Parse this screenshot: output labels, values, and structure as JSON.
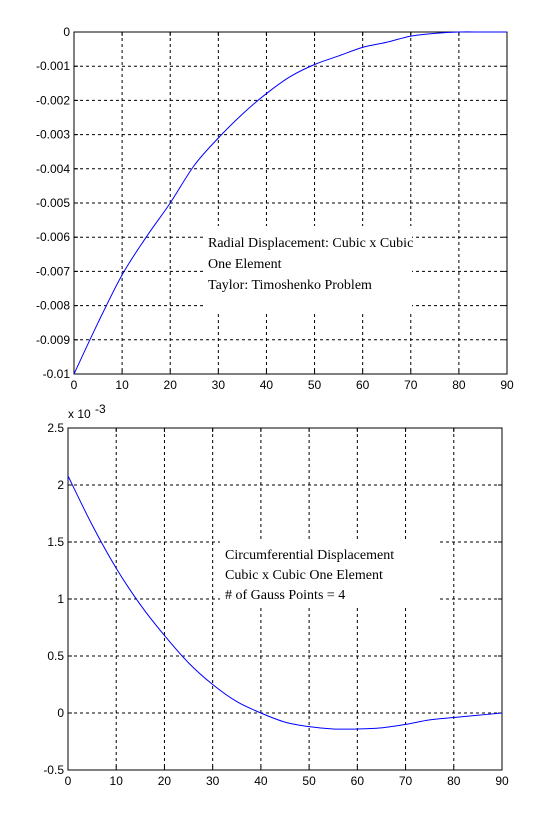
{
  "chart_data": [
    {
      "type": "line",
      "title": "",
      "xlabel": "",
      "ylabel": "",
      "xlim": [
        0,
        90
      ],
      "ylim": [
        -0.01,
        0
      ],
      "grid": true,
      "xticks": [
        "0",
        "10",
        "20",
        "30",
        "40",
        "50",
        "60",
        "70",
        "80",
        "90"
      ],
      "yticks": [
        "0",
        "-0.001",
        "-0.002",
        "-0.003",
        "-0.004",
        "-0.005",
        "-0.006",
        "-0.007",
        "-0.008",
        "-0.009",
        "-0.01"
      ],
      "annotation": [
        "Radial Displacement: Cubic x Cubic",
        "One Element",
        "Taylor: Timoshenko Problem"
      ],
      "line_color": "#0000ff",
      "series": [
        {
          "x": [
            0,
            5,
            10,
            15,
            20,
            25,
            30,
            35,
            40,
            45,
            50,
            55,
            60,
            65,
            70,
            75,
            80,
            85,
            90
          ],
          "y": [
            -0.01,
            -0.0085,
            -0.0071,
            -0.006,
            -0.005,
            -0.0039,
            -0.0031,
            -0.0024,
            -0.0018,
            -0.0013,
            -0.00095,
            -0.0007,
            -0.00045,
            -0.0003,
            -0.00012,
            -4e-05,
            0,
            0,
            0
          ]
        }
      ]
    },
    {
      "type": "line",
      "title": "",
      "xlabel": "",
      "ylabel": "",
      "xlim": [
        0,
        90
      ],
      "ylim": [
        -0.5,
        2.5
      ],
      "y_multiplier": "x 10",
      "y_multiplier_exp": "-3",
      "grid": true,
      "xticks": [
        "0",
        "10",
        "20",
        "30",
        "40",
        "50",
        "60",
        "70",
        "80",
        "90"
      ],
      "yticks": [
        "2.5",
        "2",
        "1.5",
        "1",
        "0.5",
        "0",
        "-0.5"
      ],
      "annotation": [
        "Circumferential Displacement",
        "Cubic x Cubic One Element",
        "# of Gauss Points = 4"
      ],
      "line_color": "#0000ff",
      "series": [
        {
          "x": [
            0,
            5,
            10,
            15,
            20,
            25,
            30,
            35,
            40,
            45,
            50,
            55,
            60,
            65,
            70,
            75,
            80,
            85,
            90
          ],
          "y": [
            2.08,
            1.65,
            1.27,
            0.95,
            0.68,
            0.44,
            0.25,
            0.1,
            0.0,
            -0.08,
            -0.12,
            -0.14,
            -0.14,
            -0.13,
            -0.1,
            -0.06,
            -0.04,
            -0.02,
            0.0
          ]
        }
      ]
    }
  ]
}
